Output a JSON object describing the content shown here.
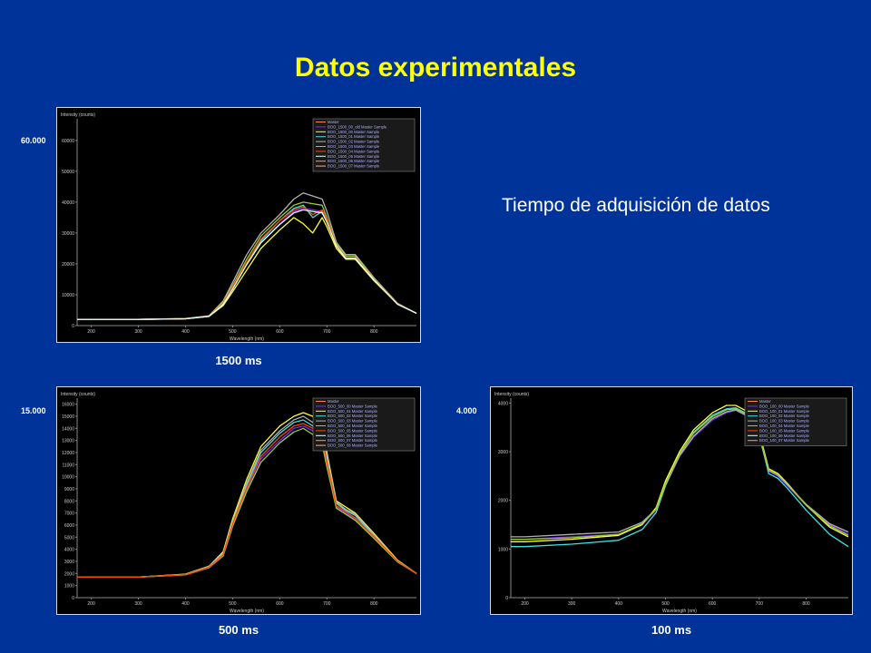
{
  "slide": {
    "title": "Datos experimentales",
    "subtitle": "Tiempo de adquisición de datos"
  },
  "colors": {
    "background": "#003399",
    "title": "#ffff00",
    "series": [
      "#ff7f50",
      "#7b2cff",
      "#ffff33",
      "#40e0e0",
      "#b0b0b0",
      "#9acd32",
      "#ff4500",
      "#e0ffff",
      "#ff9966",
      "#ffaa88"
    ]
  },
  "chart_data": [
    {
      "type": "line",
      "caption": "1500 ms",
      "side_label": "60.000",
      "ylabel": "Intensity (counts)",
      "xlabel": "Wavelength (nm)",
      "xlim": [
        170,
        890
      ],
      "ylim": [
        0,
        67000
      ],
      "xticks": [
        200,
        300,
        400,
        500,
        600,
        700,
        800
      ],
      "yticks": [
        0,
        10000,
        20000,
        30000,
        40000,
        50000,
        60000
      ],
      "grid": false,
      "legend_position": "top-right",
      "legend": [
        "Master",
        "BOO_1500_00_old Master Sample",
        "BOO_1500_00 Master Sample",
        "BOO_1500_01 Master Sample",
        "BOO_1500_02 Master Sample",
        "BOO_1500_03 Master Sample",
        "BOO_1500_04 Master Sample",
        "BOO_1500_05 Master Sample",
        "BOO_1500_06 Master Sample",
        "BOO_1500_07 Master Sample"
      ],
      "x": [
        170,
        200,
        300,
        400,
        450,
        480,
        500,
        530,
        560,
        600,
        630,
        650,
        670,
        690,
        700,
        720,
        740,
        760,
        800,
        850,
        890
      ],
      "series": [
        {
          "values": [
            2000,
            2000,
            2000,
            2200,
            3000,
            7000,
            12000,
            20000,
            27000,
            33000,
            37000,
            38000,
            37500,
            37000,
            34000,
            26000,
            22000,
            22000,
            15000,
            7000,
            4000
          ]
        },
        {
          "values": [
            2000,
            2000,
            2000,
            2200,
            3000,
            6500,
            11000,
            18000,
            25000,
            31000,
            35000,
            33000,
            30000,
            35000,
            32000,
            25000,
            21500,
            21500,
            14500,
            7000,
            4000
          ]
        },
        {
          "values": [
            2000,
            2000,
            2000,
            2200,
            3000,
            7000,
            12000,
            20000,
            27500,
            34000,
            38000,
            39000,
            35000,
            37000,
            34000,
            26000,
            22000,
            22000,
            15000,
            7000,
            4000
          ]
        },
        {
          "values": [
            2000,
            2000,
            2000,
            2300,
            3200,
            8000,
            14000,
            23000,
            30000,
            36000,
            41000,
            43000,
            42000,
            41000,
            37000,
            27000,
            23000,
            23000,
            15500,
            7200,
            4000
          ]
        },
        {
          "values": [
            2000,
            2000,
            2000,
            2250,
            3100,
            7500,
            13000,
            21500,
            29000,
            35000,
            39000,
            40000,
            39500,
            39000,
            35000,
            26500,
            22500,
            22500,
            15200,
            7100,
            4000
          ]
        },
        {
          "values": [
            2000,
            2000,
            2000,
            2200,
            3050,
            7200,
            12500,
            20500,
            28000,
            34000,
            37500,
            38500,
            36000,
            37500,
            34500,
            26000,
            22000,
            22000,
            15000,
            7000,
            4000
          ]
        },
        {
          "values": [
            2000,
            2000,
            2000,
            2200,
            3000,
            6900,
            11800,
            19800,
            26800,
            32800,
            36500,
            37500,
            37000,
            36500,
            33500,
            25800,
            21800,
            21800,
            14800,
            6900,
            4000
          ]
        }
      ]
    },
    {
      "type": "line",
      "caption": "500 ms",
      "side_label": "15.000",
      "ylabel": "Intensity (counts)",
      "xlabel": "Wavelength (nm)",
      "xlim": [
        170,
        890
      ],
      "ylim": [
        0,
        16500
      ],
      "xticks": [
        200,
        300,
        400,
        500,
        600,
        700,
        800
      ],
      "yticks": [
        0,
        1000,
        2000,
        3000,
        4000,
        5000,
        6000,
        7000,
        8000,
        9000,
        10000,
        11000,
        12000,
        13000,
        14000,
        15000,
        16000
      ],
      "grid": false,
      "legend_position": "top-right",
      "legend": [
        "Master",
        "BOO_500_00 Master Sample",
        "BOO_500_01 Master Sample",
        "BOO_500_02 Master Sample",
        "BOO_500_03 Master Sample",
        "BOO_500_04 Master Sample",
        "BOO_500_05 Master Sample",
        "BOO_500_06 Master Sample",
        "BOO_500_07 Master Sample",
        "BOO_500_08 Master Sample"
      ],
      "x": [
        170,
        200,
        300,
        400,
        450,
        480,
        500,
        530,
        560,
        600,
        630,
        650,
        670,
        690,
        700,
        720,
        740,
        760,
        800,
        850,
        890
      ],
      "series": [
        {
          "values": [
            1700,
            1700,
            1700,
            1900,
            2500,
            3500,
            6000,
            9000,
            11500,
            13000,
            14000,
            14200,
            13800,
            13000,
            11000,
            7500,
            7000,
            6500,
            5000,
            3000,
            2000
          ]
        },
        {
          "values": [
            1700,
            1700,
            1700,
            1950,
            2600,
            3800,
            6500,
            9800,
            12500,
            14200,
            15000,
            15300,
            15000,
            14200,
            12000,
            8000,
            7500,
            7000,
            5300,
            3100,
            2000
          ]
        },
        {
          "values": [
            1700,
            1700,
            1700,
            1900,
            2550,
            3600,
            6200,
            9300,
            12000,
            13600,
            14500,
            14700,
            14200,
            13600,
            11500,
            7800,
            7200,
            6800,
            5100,
            3000,
            2000
          ]
        },
        {
          "values": [
            1700,
            1700,
            1700,
            1920,
            2580,
            3700,
            6300,
            9500,
            12200,
            13800,
            14700,
            15000,
            14500,
            13800,
            11700,
            7900,
            7300,
            6900,
            5200,
            3050,
            2000
          ]
        },
        {
          "values": [
            1700,
            1700,
            1700,
            1880,
            2480,
            3450,
            5900,
            8800,
            11200,
            12800,
            13700,
            14000,
            13500,
            12700,
            10800,
            7400,
            6900,
            6400,
            4900,
            2950,
            2000
          ]
        },
        {
          "values": [
            1700,
            1700,
            1700,
            1900,
            2520,
            3550,
            6100,
            9100,
            11700,
            13300,
            14200,
            14400,
            14000,
            13300,
            11200,
            7600,
            7100,
            6600,
            5050,
            3000,
            2000
          ]
        }
      ]
    },
    {
      "type": "line",
      "caption": "100 ms",
      "side_label": "4.000",
      "ylabel": "Intensity (counts)",
      "xlabel": "Wavelength (nm)",
      "xlim": [
        170,
        890
      ],
      "ylim": [
        0,
        4100
      ],
      "xticks": [
        200,
        300,
        400,
        500,
        600,
        700,
        800
      ],
      "yticks": [
        0,
        1000,
        2000,
        3000,
        4000
      ],
      "grid": false,
      "legend_position": "top-right",
      "legend": [
        "Master",
        "BOO_100_00 Master Sample",
        "BOO_100_01 Master Sample",
        "BOO_100_02 Master Sample",
        "BOO_100_03 Master Sample",
        "BOO_100_04 Master Sample",
        "BOO_100_05 Master Sample",
        "BOO_100_06 Master Sample",
        "BOO_100_07 Master Sample"
      ],
      "x": [
        170,
        200,
        300,
        400,
        450,
        480,
        500,
        530,
        560,
        600,
        630,
        650,
        670,
        690,
        700,
        720,
        740,
        760,
        800,
        850,
        890
      ],
      "series": [
        {
          "values": [
            1200,
            1200,
            1250,
            1300,
            1500,
            1800,
            2300,
            2900,
            3300,
            3650,
            3800,
            3850,
            3750,
            3600,
            3300,
            2600,
            2500,
            2300,
            1900,
            1500,
            1300
          ]
        },
        {
          "values": [
            1150,
            1150,
            1200,
            1280,
            1500,
            1850,
            2400,
            3000,
            3450,
            3800,
            3950,
            3950,
            3850,
            3700,
            3400,
            2650,
            2550,
            2350,
            1900,
            1450,
            1250
          ]
        },
        {
          "values": [
            1050,
            1050,
            1100,
            1180,
            1400,
            1750,
            2300,
            2950,
            3400,
            3750,
            3880,
            3900,
            3800,
            3650,
            3350,
            2550,
            2450,
            2250,
            1800,
            1300,
            1050
          ]
        },
        {
          "values": [
            1250,
            1250,
            1300,
            1350,
            1550,
            1820,
            2320,
            2920,
            3320,
            3680,
            3820,
            3860,
            3760,
            3620,
            3320,
            2620,
            2520,
            2320,
            1920,
            1520,
            1350
          ]
        },
        {
          "values": [
            1200,
            1200,
            1230,
            1300,
            1520,
            1820,
            2350,
            2950,
            3380,
            3720,
            3860,
            3880,
            3780,
            3640,
            3340,
            2620,
            2520,
            2330,
            1900,
            1480,
            1280
          ]
        }
      ]
    }
  ]
}
